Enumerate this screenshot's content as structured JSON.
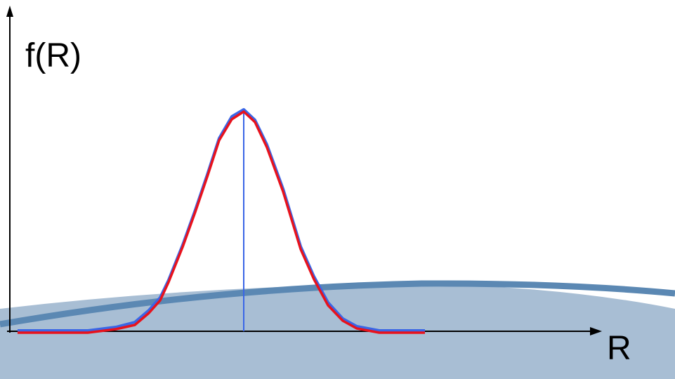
{
  "labels": {
    "y_axis": "f(R)",
    "x_axis": "R"
  }
}
